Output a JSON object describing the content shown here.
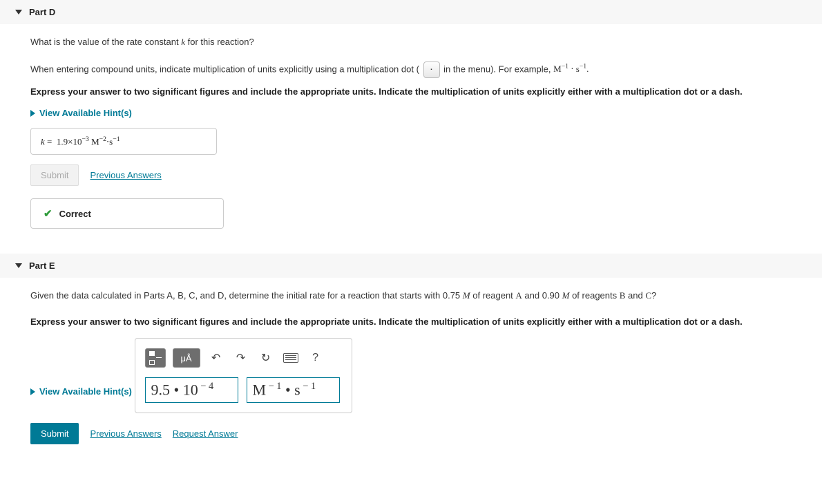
{
  "partD": {
    "title": "Part D",
    "question_html": "What is the value of the rate constant <span class='serif' style='font-style:italic'>k</span> for this reaction?",
    "instruction_pre": "When entering compound units, indicate multiplication of units explicitly using a multiplication dot (",
    "instruction_post": " in the menu). For example, ",
    "example_expr_html": "M<span class='sup'>−1</span> ⋅ s<span class='sup'>−1</span>.",
    "bold_instruction": "Express your answer to two significant figures and include the appropriate units. Indicate the multiplication of units explicitly either with a multiplication dot or a dash.",
    "hints_label": "View Available Hint(s)",
    "answer_html": "<span class='k-ital'>k</span> =&nbsp; 1.9×10<span class='sup'>−3</span> M<span class='sup'>−2</span>⋅s<span class='sup'>−1</span>",
    "submit_label": "Submit",
    "prev_answers_label": "Previous Answers",
    "feedback": "Correct"
  },
  "partE": {
    "title": "Part E",
    "question_html": "Given the data calculated in Parts A, B, C, and D, determine the initial rate for a reaction that starts with 0.75 <span class='serif' style='font-style:italic'>M</span> of reagent <span class='serif'>A</span> and 0.90 <span class='serif' style='font-style:italic'>M</span> of reagents <span class='serif'>B</span> and <span class='serif'>C</span>?",
    "bold_instruction": "Express your answer to two significant figures and include the appropriate units. Indicate the multiplication of units explicitly either with a multiplication dot or a dash.",
    "hints_label": "View Available Hint(s)",
    "toolbar": {
      "units_btn": "μÅ",
      "help_btn": "?"
    },
    "value_html": "9.5 • 10<span style='font-size:0.65em;vertical-align:super'>&nbsp;−&nbsp;4</span>",
    "units_html": "M<span style='font-size:0.65em;vertical-align:super'>&nbsp;−&nbsp;1</span> • s<span style='font-size:0.65em;vertical-align:super'>&nbsp;−&nbsp;1</span>",
    "submit_label": "Submit",
    "prev_answers_label": "Previous Answers",
    "request_answer_label": "Request Answer"
  },
  "colors": {
    "link": "#007a96",
    "correct_green": "#2e9b3a",
    "header_bg": "#f7f7f7",
    "border": "#cccccc",
    "tool_dark": "#6e6e6e"
  }
}
